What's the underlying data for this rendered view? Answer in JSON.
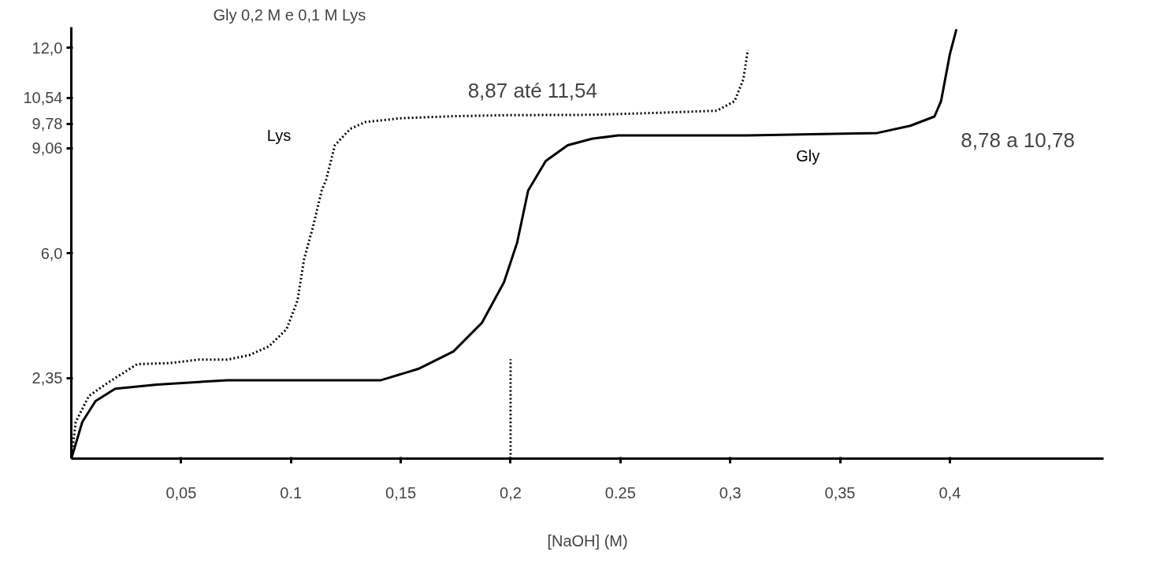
{
  "chart_data": {
    "type": "line",
    "title": "Gly 0,2 M e 0,1 M Lys",
    "xlabel": "[NaOH] (M)",
    "xlim": [
      0,
      0.47
    ],
    "ylim": [
      0,
      12.6
    ],
    "xticks": [
      {
        "value": 0.05,
        "label": "0,05"
      },
      {
        "value": 0.1,
        "label": "0.1"
      },
      {
        "value": 0.15,
        "label": "0,15"
      },
      {
        "value": 0.2,
        "label": "0,2"
      },
      {
        "value": 0.25,
        "label": "0.25"
      },
      {
        "value": 0.3,
        "label": "0,3"
      },
      {
        "value": 0.35,
        "label": "0,35"
      },
      {
        "value": 0.4,
        "label": "0,4"
      }
    ],
    "yticks": [
      {
        "value": 2.35,
        "label": "2,35"
      },
      {
        "value": 6.0,
        "label": "6,0"
      },
      {
        "value": 9.06,
        "label": "9,06"
      },
      {
        "value": 9.78,
        "label": "9,78"
      },
      {
        "value": 10.54,
        "label": "10,54"
      },
      {
        "value": 12.0,
        "label": "12,0"
      }
    ],
    "grid": false,
    "series": [
      {
        "name": "Gly",
        "color": "#000000",
        "line_style": "solid",
        "x": [
          0,
          0.005,
          0.011,
          0.02,
          0.039,
          0.071,
          0.141,
          0.158,
          0.174,
          0.187,
          0.197,
          0.203,
          0.208,
          0.216,
          0.226,
          0.237,
          0.249,
          0.308,
          0.367,
          0.382,
          0.393,
          0.396,
          0.4,
          0.403
        ],
        "values": [
          0,
          1.07,
          1.68,
          2.04,
          2.16,
          2.29,
          2.29,
          2.62,
          3.13,
          3.97,
          5.15,
          6.31,
          7.83,
          8.69,
          9.15,
          9.34,
          9.44,
          9.44,
          9.51,
          9.72,
          9.99,
          10.44,
          11.81,
          12.54
        ]
      },
      {
        "name": "Lys",
        "color": "#000000",
        "line_style": "dotted",
        "x": [
          0,
          0.002,
          0.008,
          0.017,
          0.03,
          0.045,
          0.058,
          0.071,
          0.081,
          0.09,
          0.098,
          0.103,
          0.106,
          0.11,
          0.114,
          0.116,
          0.12,
          0.127,
          0.134,
          0.15,
          0.174,
          0.199,
          0.237,
          0.268,
          0.294,
          0.302,
          0.306,
          0.308
        ],
        "values": [
          0,
          1.07,
          1.83,
          2.23,
          2.76,
          2.79,
          2.89,
          2.89,
          3.02,
          3.28,
          3.78,
          4.62,
          5.83,
          6.76,
          7.83,
          8.14,
          9.15,
          9.63,
          9.83,
          9.94,
          10.0,
          10.03,
          10.04,
          10.1,
          10.16,
          10.44,
          11.08,
          11.93
        ]
      },
      {
        "color": "#000000",
        "line_style": "dotted",
        "x": [
          0.2,
          0.2
        ],
        "values": [
          0,
          2.9
        ]
      }
    ],
    "annotations": [
      "8,87 até 11,54",
      "8,78 a 10,78"
    ]
  }
}
